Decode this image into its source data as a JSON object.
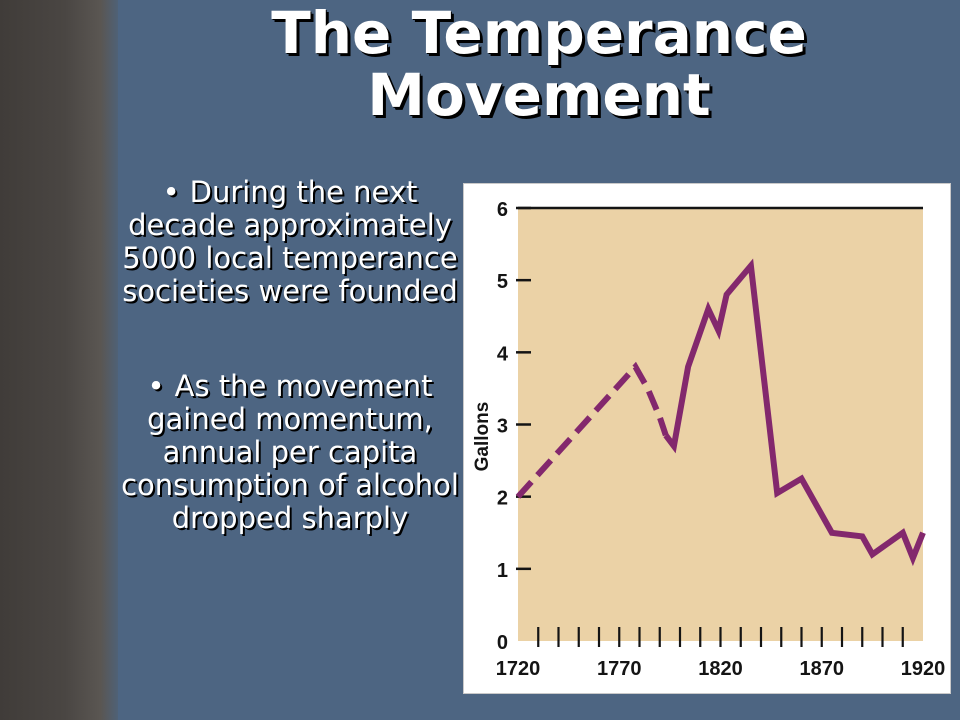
{
  "slide": {
    "title_lines": [
      "The Temperance",
      "Movement"
    ],
    "bullets": [
      "During the next decade approximately 5000 local temperance societies were founded",
      "As the movement gained momentum, annual per capita consumption of alcohol dropped sharply"
    ],
    "bullet_glyph": "•"
  },
  "colors": {
    "slide_background": "#4d6582",
    "plot_background": "#ebd2a6",
    "line_color": "#83286d",
    "title_text": "#ffffff"
  },
  "chart_data": {
    "type": "line",
    "title": "",
    "xlabel": "",
    "ylabel": "Gallons",
    "xlim": [
      1720,
      1920
    ],
    "ylim": [
      0,
      6
    ],
    "x_tick_labels": [
      "1720",
      "1770",
      "1820",
      "1870",
      "1920"
    ],
    "x_ticks_labeled": [
      1720,
      1770,
      1820,
      1870,
      1920
    ],
    "x_minor_tick_step": 10,
    "y_tick_labels": [
      "0",
      "1",
      "2",
      "3",
      "4",
      "5",
      "6"
    ],
    "y_ticks": [
      0,
      1,
      2,
      3,
      4,
      5,
      6
    ],
    "grid": false,
    "legend": "none",
    "series": [
      {
        "style": "dashed",
        "x": [
          1720,
          1778,
          1784,
          1790,
          1793
        ],
        "y": [
          2.0,
          3.8,
          3.5,
          3.1,
          2.85
        ]
      },
      {
        "style": "solid",
        "x": [
          1793,
          1797,
          1804,
          1814,
          1819,
          1823,
          1835,
          1848,
          1860,
          1875,
          1890,
          1895,
          1900,
          1910,
          1915,
          1920
        ],
        "y": [
          2.85,
          2.7,
          3.8,
          4.6,
          4.3,
          4.8,
          5.2,
          2.05,
          2.25,
          1.5,
          1.45,
          1.2,
          1.3,
          1.5,
          1.15,
          1.5
        ]
      }
    ]
  }
}
